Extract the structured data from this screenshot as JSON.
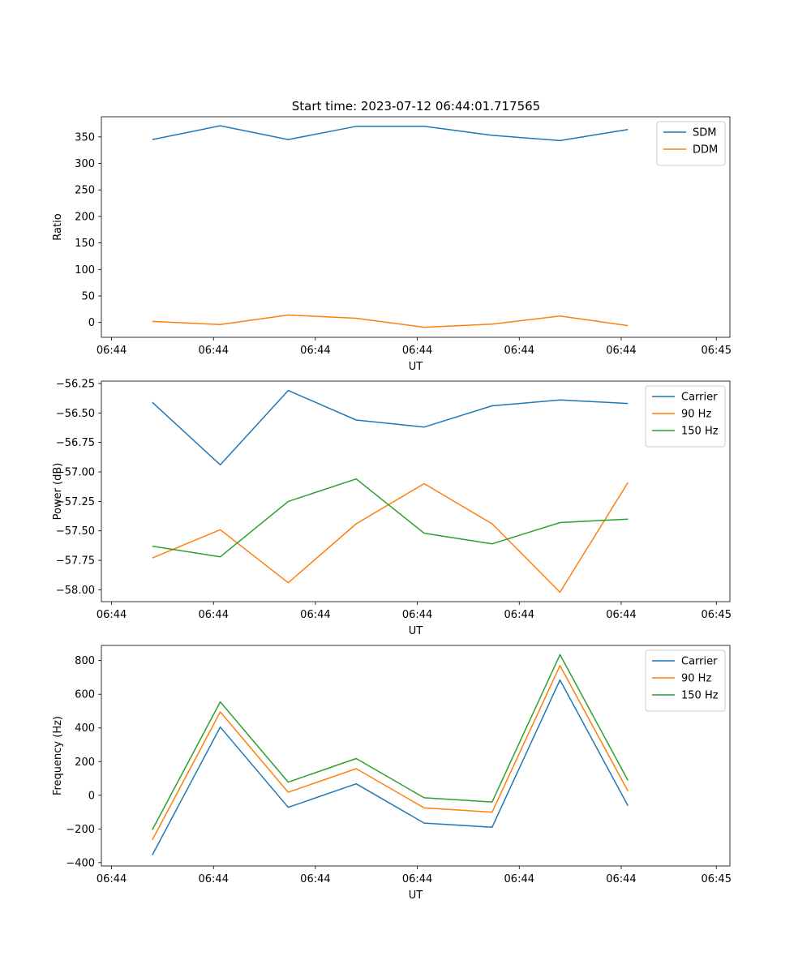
{
  "figure_title": "Start time: 2023-07-12 06:44:01.717565",
  "colors": {
    "blue": "#1f77b4",
    "orange": "#ff7f0e",
    "green": "#2ca02c"
  },
  "chart_data": [
    {
      "type": "line",
      "title": "Start time: 2023-07-12 06:44:01.717565",
      "xlabel": "UT",
      "ylabel": "Ratio",
      "x": [
        1,
        2,
        3,
        4,
        5,
        6,
        7,
        8
      ],
      "xlim": [
        0.25,
        9.5
      ],
      "xticks": [
        0.4,
        1.9,
        3.4,
        4.9,
        6.4,
        7.9,
        9.3
      ],
      "xtick_labels": [
        "06:44",
        "06:44",
        "06:44",
        "06:44",
        "06:44",
        "06:44",
        "06:45"
      ],
      "ylim": [
        -28,
        388
      ],
      "yticks": [
        0,
        50,
        100,
        150,
        200,
        250,
        300,
        350
      ],
      "ytick_labels": [
        "0",
        "50",
        "100",
        "150",
        "200",
        "250",
        "300",
        "350"
      ],
      "legend_position": "top-right",
      "series": [
        {
          "name": "SDM",
          "color": "#1f77b4",
          "values": [
            345,
            371,
            345,
            370,
            370,
            353,
            343,
            364
          ]
        },
        {
          "name": "DDM",
          "color": "#ff7f0e",
          "values": [
            2,
            -4,
            14,
            8,
            -9,
            -3,
            12,
            -6
          ]
        }
      ]
    },
    {
      "type": "line",
      "title": "",
      "xlabel": "UT",
      "ylabel": "Power (dB)",
      "x": [
        1,
        2,
        3,
        4,
        5,
        6,
        7,
        8
      ],
      "xlim": [
        0.25,
        9.5
      ],
      "xticks": [
        0.4,
        1.9,
        3.4,
        4.9,
        6.4,
        7.9,
        9.3
      ],
      "xtick_labels": [
        "06:44",
        "06:44",
        "06:44",
        "06:44",
        "06:44",
        "06:44",
        "06:45"
      ],
      "ylim": [
        -58.1,
        -56.23
      ],
      "yticks": [
        -58.0,
        -57.75,
        -57.5,
        -57.25,
        -57.0,
        -56.75,
        -56.5,
        -56.25
      ],
      "ytick_labels": [
        "−58.00",
        "−57.75",
        "−57.50",
        "−57.25",
        "−57.00",
        "−56.75",
        "−56.50",
        "−56.25"
      ],
      "legend_position": "top-right",
      "series": [
        {
          "name": "Carrier",
          "color": "#1f77b4",
          "values": [
            -56.41,
            -56.94,
            -56.31,
            -56.56,
            -56.62,
            -56.44,
            -56.39,
            -56.42
          ]
        },
        {
          "name": "90 Hz",
          "color": "#ff7f0e",
          "values": [
            -57.73,
            -57.49,
            -57.94,
            -57.44,
            -57.1,
            -57.44,
            -58.02,
            -57.09
          ]
        },
        {
          "name": "150 Hz",
          "color": "#2ca02c",
          "values": [
            -57.63,
            -57.72,
            -57.25,
            -57.06,
            -57.52,
            -57.61,
            -57.43,
            -57.4
          ]
        }
      ]
    },
    {
      "type": "line",
      "title": "",
      "xlabel": "UT",
      "ylabel": "Frequency (Hz)",
      "x": [
        1,
        2,
        3,
        4,
        5,
        6,
        7,
        8
      ],
      "xlim": [
        0.25,
        9.5
      ],
      "xticks": [
        0.4,
        1.9,
        3.4,
        4.9,
        6.4,
        7.9,
        9.3
      ],
      "xtick_labels": [
        "06:44",
        "06:44",
        "06:44",
        "06:44",
        "06:44",
        "06:44",
        "06:45"
      ],
      "ylim": [
        -420,
        890
      ],
      "yticks": [
        -400,
        -200,
        0,
        200,
        400,
        600,
        800
      ],
      "ytick_labels": [
        "−400",
        "−200",
        "0",
        "200",
        "400",
        "600",
        "800"
      ],
      "legend_position": "top-right",
      "series": [
        {
          "name": "Carrier",
          "color": "#1f77b4",
          "values": [
            -355,
            405,
            -72,
            68,
            -165,
            -190,
            685,
            -62
          ]
        },
        {
          "name": "90 Hz",
          "color": "#ff7f0e",
          "values": [
            -265,
            495,
            18,
            158,
            -75,
            -100,
            770,
            25
          ]
        },
        {
          "name": "150 Hz",
          "color": "#2ca02c",
          "values": [
            -205,
            555,
            78,
            218,
            -15,
            -40,
            835,
            88
          ]
        }
      ]
    }
  ]
}
